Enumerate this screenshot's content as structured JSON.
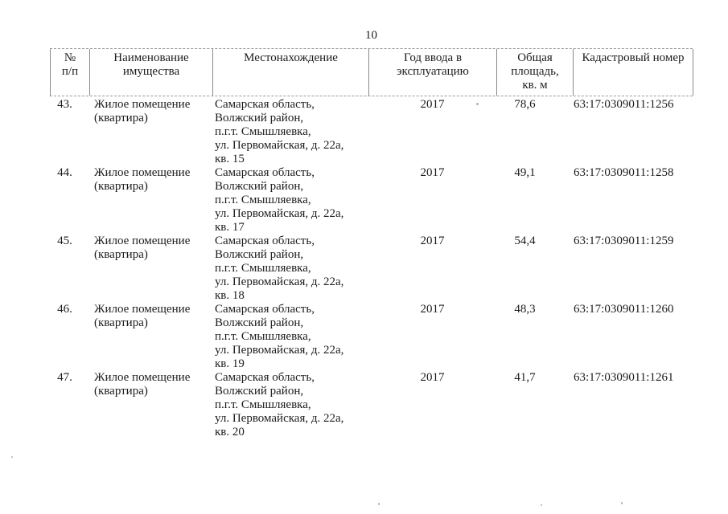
{
  "page": {
    "number": "10"
  },
  "table": {
    "headers": [
      {
        "lines": [
          "№",
          "п/п"
        ]
      },
      {
        "lines": [
          "Наименование",
          "имущества"
        ]
      },
      {
        "lines": [
          "Местонахождение"
        ]
      },
      {
        "lines": [
          "Год ввода в",
          "эксплуатацию"
        ]
      },
      {
        "lines": [
          "Общая",
          "площадь,",
          "кв. м"
        ]
      },
      {
        "lines": [
          "Кадастровый номер"
        ]
      }
    ],
    "rows": [
      {
        "num": "43.",
        "name_lines": [
          "Жилое помещение",
          "(квартира)"
        ],
        "location_lines": [
          "Самарская область,",
          "Волжский район,",
          "п.г.т. Смышляевка,",
          "ул. Первомайская, д. 22а,",
          "кв. 15"
        ],
        "year": "2017",
        "area": "78,6",
        "cadastral": "63:17:0309011:1256"
      },
      {
        "num": "44.",
        "name_lines": [
          "Жилое помещение",
          "(квартира)"
        ],
        "location_lines": [
          "Самарская область,",
          "Волжский район,",
          "п.г.т. Смышляевка,",
          "ул. Первомайская, д. 22а,",
          "кв. 17"
        ],
        "year": "2017",
        "area": "49,1",
        "cadastral": "63:17:0309011:1258"
      },
      {
        "num": "45.",
        "name_lines": [
          "Жилое помещение",
          "(квартира)"
        ],
        "location_lines": [
          "Самарская область,",
          "Волжский район,",
          "п.г.т. Смышляевка,",
          "ул. Первомайская, д. 22а,",
          "кв. 18"
        ],
        "year": "2017",
        "area": "54,4",
        "cadastral": "63:17:0309011:1259"
      },
      {
        "num": "46.",
        "name_lines": [
          "Жилое помещение",
          "(квартира)"
        ],
        "location_lines": [
          "Самарская область,",
          "Волжский район,",
          "п.г.т. Смышляевка,",
          "ул. Первомайская, д. 22а,",
          "кв. 19"
        ],
        "year": "2017",
        "area": "48,3",
        "cadastral": "63:17:0309011:1260"
      },
      {
        "num": "47.",
        "name_lines": [
          "Жилое помещение",
          "(квартира)"
        ],
        "location_lines": [
          "Самарская область,",
          "Волжский район,",
          "п.г.т. Смышляевка,",
          "ул. Первомайская, д. 22а,",
          "кв. 20"
        ],
        "year": "2017",
        "area": "41,7",
        "cadastral": "63:17:0309011:1261"
      }
    ]
  }
}
